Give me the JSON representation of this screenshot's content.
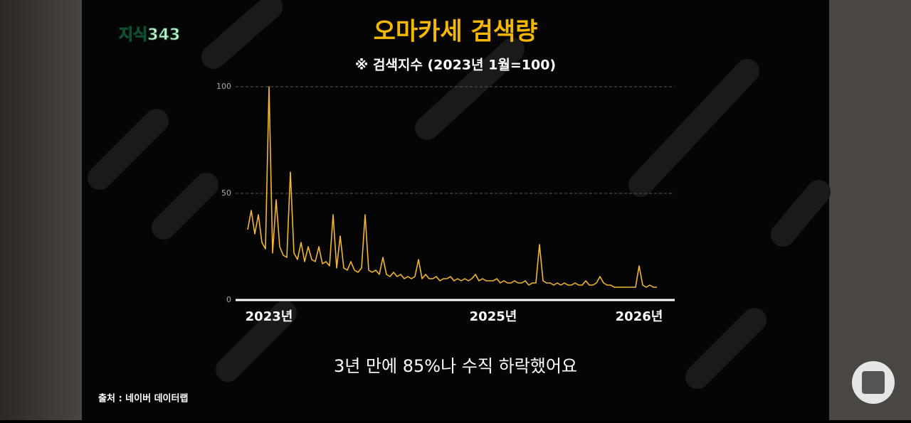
{
  "logo": "지식343",
  "caption": "3년 만에 85%나 수직 하락했어요",
  "source": "출처 : 네이버 데이터랩",
  "chart_data": {
    "type": "line",
    "title": "오마카세 검색량",
    "subtitle": "※ 검색지수 (2023년 1월=100)",
    "categories": [
      null,
      null,
      null,
      null,
      null,
      null,
      "2023년",
      null,
      null,
      null,
      null,
      null,
      null,
      null,
      null,
      null,
      null,
      null,
      null,
      null,
      null,
      null,
      null,
      null,
      null,
      null,
      null,
      null,
      null,
      null,
      null,
      null,
      null,
      null,
      null,
      null,
      null,
      null,
      null,
      null,
      null,
      null,
      null,
      null,
      null,
      null,
      null,
      null,
      null,
      null,
      null,
      null,
      null,
      null,
      null,
      null,
      null,
      null,
      null,
      null,
      null,
      null,
      null,
      null,
      null,
      null,
      null,
      null,
      null,
      "2025년",
      null,
      null,
      null,
      null,
      null,
      null,
      null,
      null,
      null,
      null,
      null,
      null,
      null,
      null,
      null,
      null,
      null,
      null,
      null,
      null,
      null,
      null,
      null,
      null,
      null,
      null,
      null,
      null,
      null,
      null,
      null,
      null,
      null,
      null,
      null,
      null,
      null,
      null,
      null,
      null,
      "2026년",
      null,
      null,
      null,
      null,
      null
    ],
    "series": [
      {
        "color": "#f2b632",
        "values": [
          33,
          42,
          31,
          40,
          27,
          24,
          100,
          22,
          47,
          25,
          21,
          20,
          60,
          22,
          19,
          27,
          18,
          25,
          19,
          18,
          25,
          17,
          18,
          16,
          40,
          15,
          30,
          15,
          14,
          18,
          14,
          13,
          15,
          40,
          14,
          13,
          14,
          12,
          20,
          12,
          11,
          13,
          11,
          12,
          10,
          11,
          10,
          11,
          19,
          10,
          12,
          10,
          10,
          11,
          9,
          10,
          10,
          11,
          9,
          10,
          9,
          10,
          9,
          10,
          12,
          9,
          10,
          9,
          9,
          9,
          10,
          8,
          9,
          8,
          8,
          9,
          8,
          8,
          9,
          7,
          8,
          8,
          26,
          9,
          8,
          8,
          7,
          8,
          7,
          8,
          7,
          7,
          8,
          7,
          7,
          9,
          7,
          7,
          8,
          11,
          8,
          7,
          7,
          6,
          6,
          6,
          6,
          6,
          6,
          6,
          16,
          7,
          6,
          7,
          6,
          6
        ]
      }
    ],
    "ylim": [
      0,
      100
    ],
    "yticks": [
      0,
      50,
      100
    ],
    "grid": true
  }
}
